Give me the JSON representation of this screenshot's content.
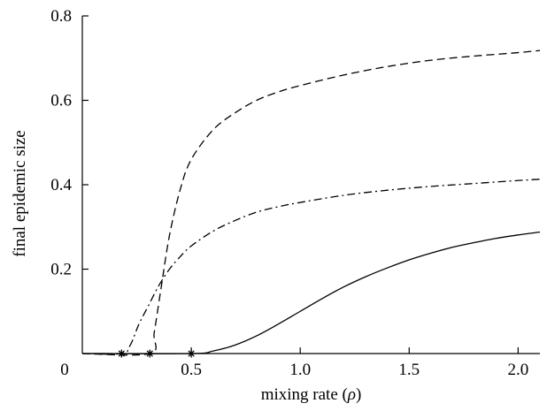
{
  "chart_data": {
    "type": "line",
    "xlabel": "mixing rate (",
    "xlabel_symbol": "ρ",
    "xlabel_suffix": ")",
    "ylabel": "final epidemic size",
    "xlim": [
      0,
      2.1
    ],
    "ylim": [
      0,
      0.8
    ],
    "grid": false,
    "x_ticks": [
      {
        "value": 0.5,
        "label": "0.5"
      },
      {
        "value": 1.0,
        "label": "1.0"
      },
      {
        "value": 1.5,
        "label": "1.5"
      },
      {
        "value": 2.0,
        "label": "2.0"
      }
    ],
    "y_ticks": [
      {
        "value": 0.2,
        "label": "0.2"
      },
      {
        "value": 0.4,
        "label": "0.4"
      },
      {
        "value": 0.6,
        "label": "0.6"
      },
      {
        "value": 0.8,
        "label": "0.8"
      }
    ],
    "origin_label": "0",
    "series": [
      {
        "style": "solid",
        "x": [
          0.0,
          0.5,
          0.6,
          0.7,
          0.8,
          0.9,
          1.0,
          1.1,
          1.2,
          1.3,
          1.4,
          1.5,
          1.6,
          1.7,
          1.8,
          1.9,
          2.0,
          2.1
        ],
        "y": [
          0.0,
          0.0,
          0.006,
          0.02,
          0.042,
          0.07,
          0.1,
          0.13,
          0.158,
          0.182,
          0.203,
          0.222,
          0.238,
          0.252,
          0.263,
          0.273,
          0.281,
          0.288
        ]
      },
      {
        "style": "dashed",
        "x": [
          0.0,
          0.31,
          0.33,
          0.36,
          0.4,
          0.45,
          0.5,
          0.6,
          0.7,
          0.8,
          0.9,
          1.0,
          1.2,
          1.4,
          1.6,
          1.8,
          2.0,
          2.1
        ],
        "y": [
          0.0,
          0.0,
          0.05,
          0.15,
          0.28,
          0.39,
          0.46,
          0.53,
          0.57,
          0.6,
          0.62,
          0.635,
          0.66,
          0.68,
          0.695,
          0.705,
          0.713,
          0.718
        ]
      },
      {
        "style": "dashdot",
        "x": [
          0.0,
          0.18,
          0.22,
          0.26,
          0.3,
          0.35,
          0.4,
          0.45,
          0.5,
          0.6,
          0.7,
          0.8,
          0.9,
          1.0,
          1.2,
          1.4,
          1.6,
          1.8,
          2.0,
          2.1
        ],
        "y": [
          0.0,
          0.0,
          0.02,
          0.07,
          0.11,
          0.16,
          0.2,
          0.23,
          0.255,
          0.29,
          0.315,
          0.335,
          0.348,
          0.358,
          0.375,
          0.387,
          0.396,
          0.403,
          0.41,
          0.413
        ]
      }
    ],
    "markers": [
      {
        "x": 0.18,
        "y": 0.0
      },
      {
        "x": 0.31,
        "y": 0.0
      },
      {
        "x": 0.5,
        "y": 0.0
      }
    ]
  }
}
